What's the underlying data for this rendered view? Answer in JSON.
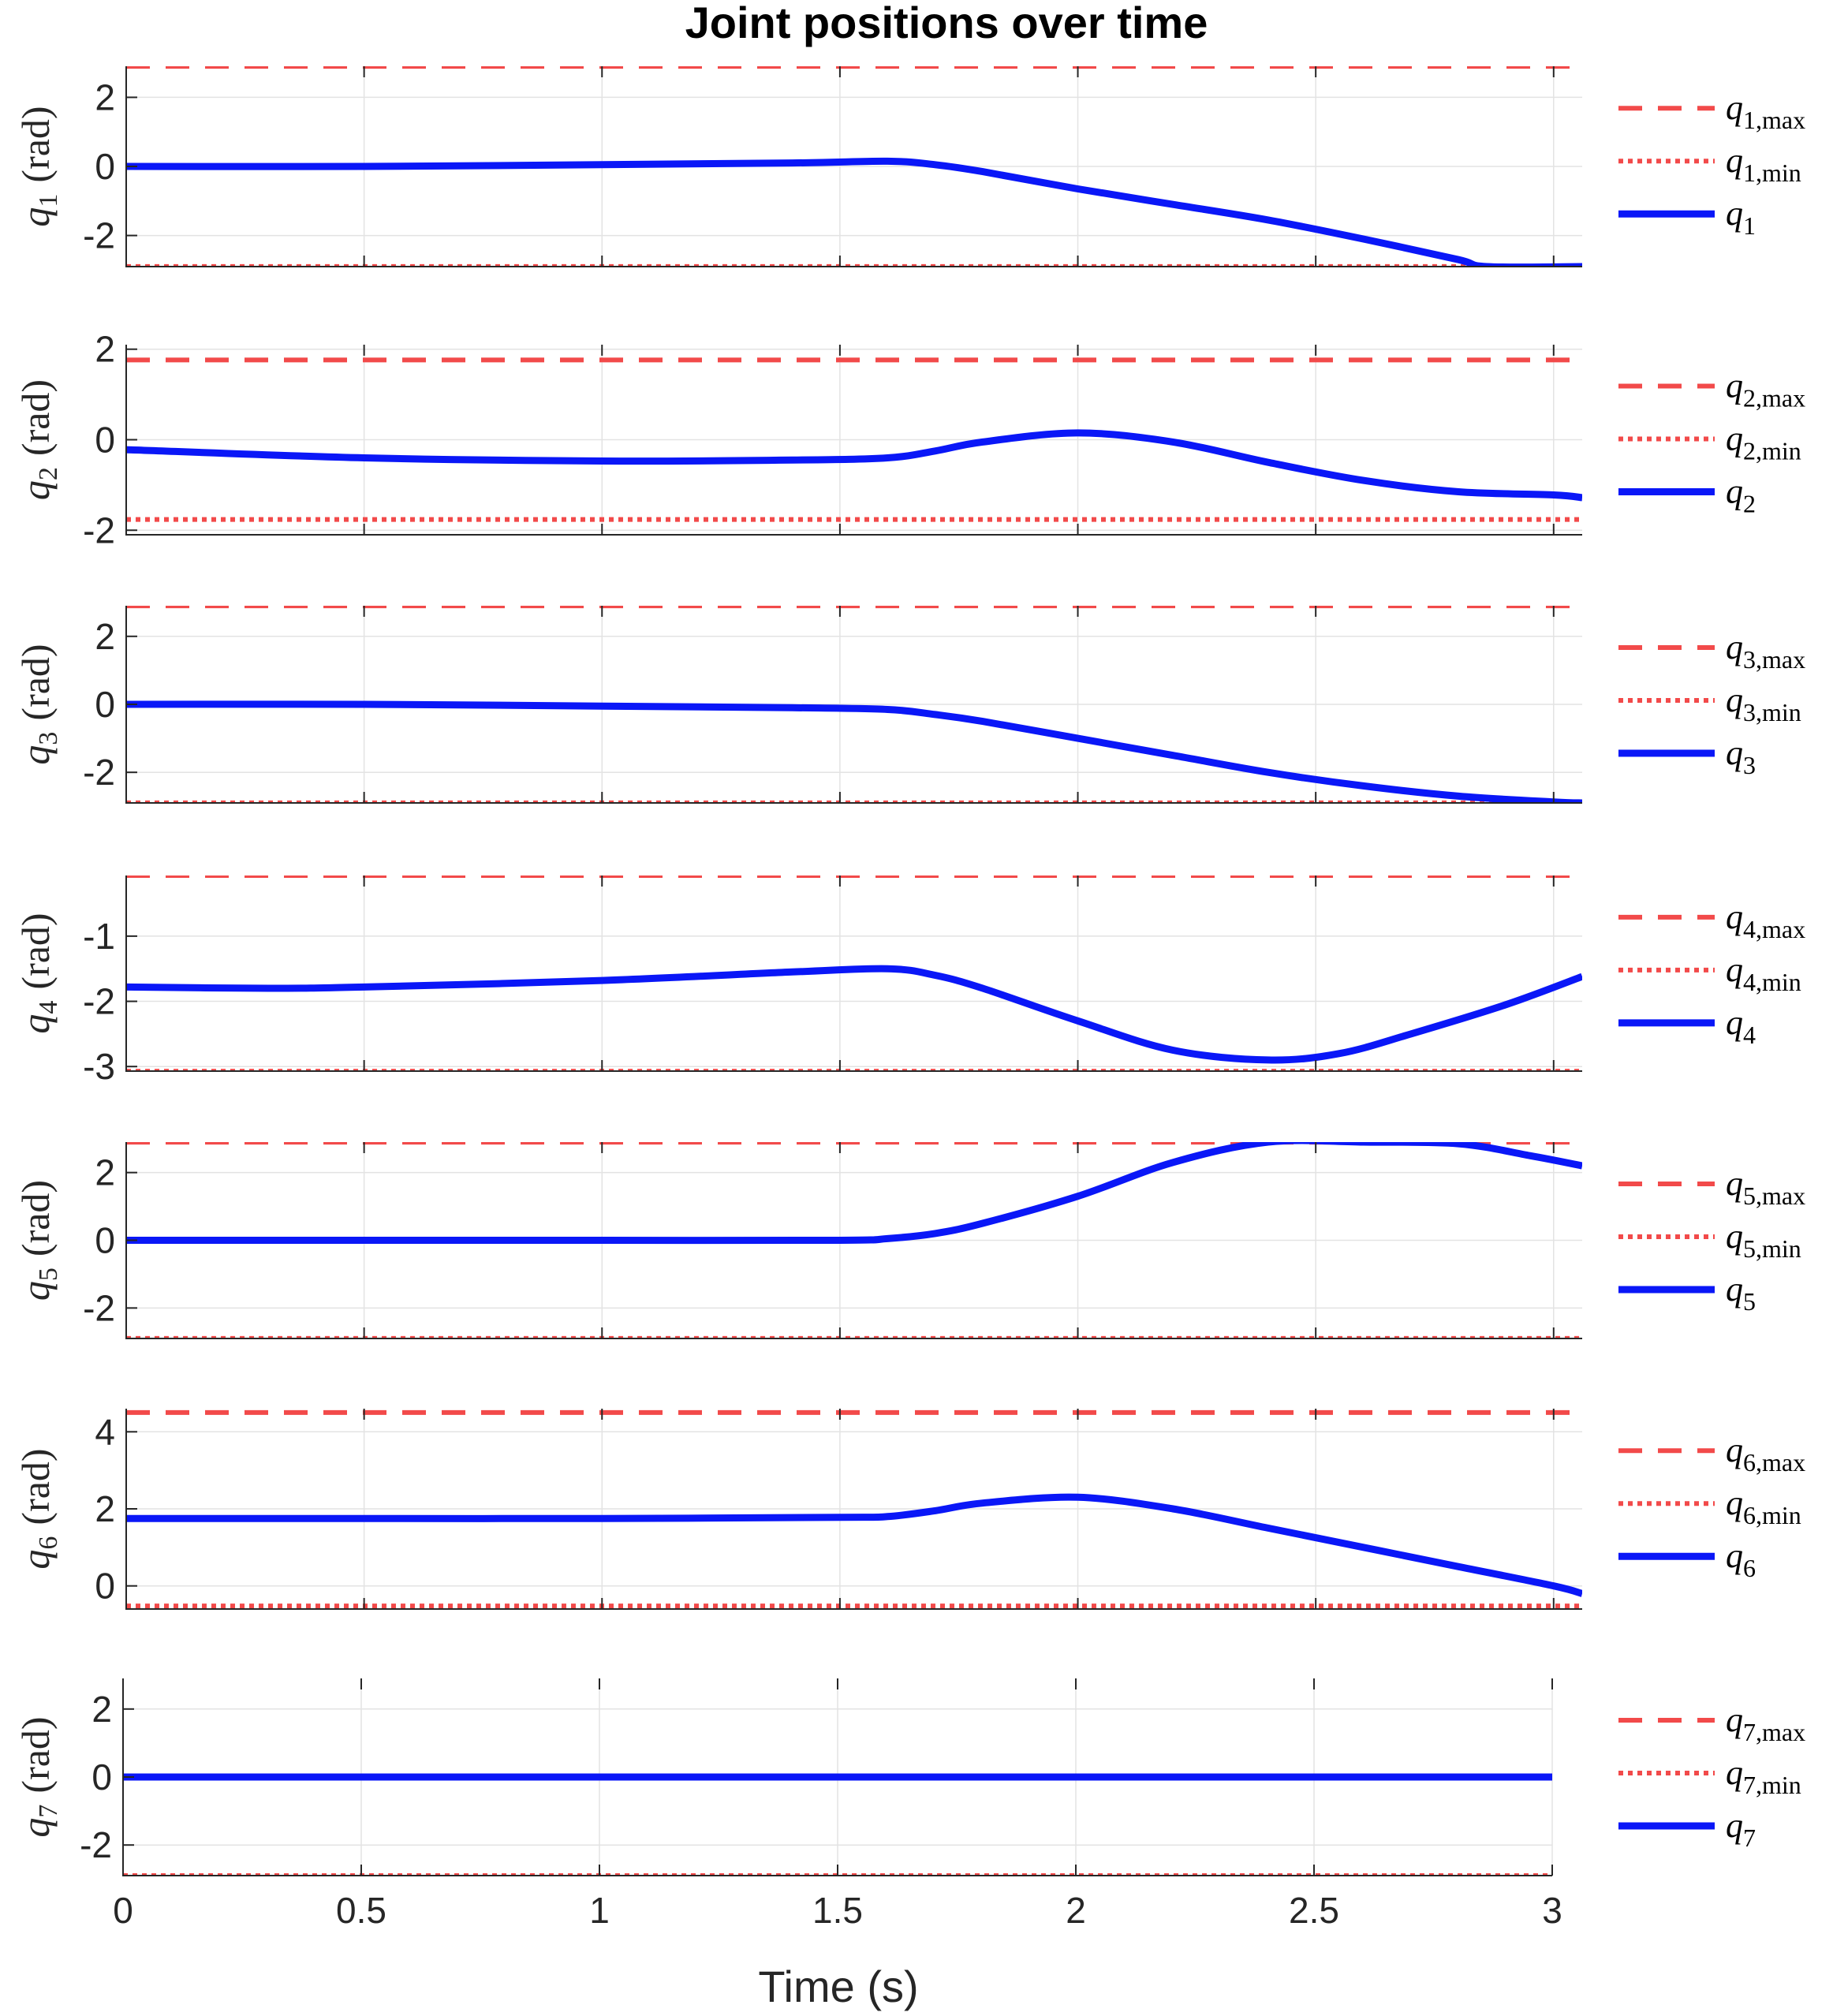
{
  "chart_data": {
    "type": "line",
    "title": "Joint positions over time",
    "xlabel": "Time (s)",
    "xticks": [
      0,
      0.5,
      1,
      1.5,
      2,
      2.5,
      3
    ],
    "xtick_labels": [
      "0",
      "0.5",
      "1",
      "1.5",
      "2",
      "2.5",
      "3"
    ],
    "grid": true,
    "legend_placement": "right of each subplot",
    "colors": {
      "limit": "#f24a4a",
      "trajectory": "#0a17f7"
    },
    "subplots": [
      {
        "joint": "1",
        "ylabel": {
          "var": "q",
          "sub": "1",
          "unit": "(rad)"
        },
        "xlim": [
          0,
          3.06
        ],
        "ylim": [
          -2.9,
          2.9
        ],
        "yticks": [
          -2,
          0,
          2
        ],
        "ytick_labels": [
          "-2",
          "0",
          "2"
        ],
        "series": [
          {
            "name": "q1,max",
            "kind": "max",
            "style": "dashed",
            "x": [
              0,
              3.06
            ],
            "y": [
              2.8973,
              2.8973
            ]
          },
          {
            "name": "q1,min",
            "kind": "min",
            "style": "dotted",
            "x": [
              0,
              3.06
            ],
            "y": [
              -2.8973,
              -2.8973
            ]
          },
          {
            "name": "q1",
            "kind": "traj",
            "style": "solid",
            "x": [
              0,
              0.5,
              1.0,
              1.4,
              1.6,
              1.7,
              1.8,
              2.0,
              2.2,
              2.4,
              2.6,
              2.8,
              2.86,
              3.06
            ],
            "y": [
              0.0,
              0.0,
              0.05,
              0.1,
              0.15,
              0.05,
              -0.15,
              -0.65,
              -1.1,
              -1.55,
              -2.1,
              -2.7,
              -2.9,
              -2.9
            ]
          }
        ],
        "legend": [
          {
            "kind": "max",
            "var": "q",
            "sub": "1,max"
          },
          {
            "kind": "min",
            "var": "q",
            "sub": "1,min"
          },
          {
            "kind": "traj",
            "var": "q",
            "sub": "1"
          }
        ]
      },
      {
        "joint": "2",
        "ylabel": {
          "var": "q",
          "sub": "2",
          "unit": "(rad)"
        },
        "xlim": [
          0,
          3.06
        ],
        "ylim": [
          -2.1,
          2.1
        ],
        "yticks": [
          -2,
          0,
          2
        ],
        "ytick_labels": [
          "-2",
          "0",
          "2"
        ],
        "series": [
          {
            "name": "q2,max",
            "kind": "max",
            "style": "dashed",
            "x": [
              0,
              3.06
            ],
            "y": [
              1.7628,
              1.7628
            ]
          },
          {
            "name": "q2,min",
            "kind": "min",
            "style": "dotted",
            "x": [
              0,
              3.06
            ],
            "y": [
              -1.7628,
              -1.7628
            ]
          },
          {
            "name": "q2",
            "kind": "traj",
            "style": "solid",
            "x": [
              0,
              0.5,
              1.0,
              1.4,
              1.6,
              1.7,
              1.8,
              2.0,
              2.2,
              2.4,
              2.6,
              2.8,
              3.0,
              3.06
            ],
            "y": [
              -0.22,
              -0.4,
              -0.47,
              -0.45,
              -0.4,
              -0.25,
              -0.05,
              0.15,
              -0.05,
              -0.5,
              -0.9,
              -1.15,
              -1.22,
              -1.28
            ]
          }
        ],
        "legend": [
          {
            "kind": "max",
            "var": "q",
            "sub": "2,max"
          },
          {
            "kind": "min",
            "var": "q",
            "sub": "2,min"
          },
          {
            "kind": "traj",
            "var": "q",
            "sub": "2"
          }
        ]
      },
      {
        "joint": "3",
        "ylabel": {
          "var": "q",
          "sub": "3",
          "unit": "(rad)"
        },
        "xlim": [
          0,
          3.06
        ],
        "ylim": [
          -2.9,
          2.9
        ],
        "yticks": [
          -2,
          0,
          2
        ],
        "ytick_labels": [
          "-2",
          "0",
          "2"
        ],
        "series": [
          {
            "name": "q3,max",
            "kind": "max",
            "style": "dashed",
            "x": [
              0,
              3.06
            ],
            "y": [
              2.8973,
              2.8973
            ]
          },
          {
            "name": "q3,min",
            "kind": "min",
            "style": "dotted",
            "x": [
              0,
              3.06
            ],
            "y": [
              -2.8973,
              -2.8973
            ]
          },
          {
            "name": "q3",
            "kind": "traj",
            "style": "solid",
            "x": [
              0,
              0.5,
              1.0,
              1.4,
              1.6,
              1.7,
              1.8,
              2.0,
              2.2,
              2.4,
              2.6,
              2.8,
              3.0,
              3.06
            ],
            "y": [
              0.0,
              0.0,
              -0.05,
              -0.1,
              -0.15,
              -0.3,
              -0.5,
              -1.0,
              -1.5,
              -2.0,
              -2.4,
              -2.7,
              -2.87,
              -2.9
            ]
          }
        ],
        "legend": [
          {
            "kind": "max",
            "var": "q",
            "sub": "3,max"
          },
          {
            "kind": "min",
            "var": "q",
            "sub": "3,min"
          },
          {
            "kind": "traj",
            "var": "q",
            "sub": "3"
          }
        ]
      },
      {
        "joint": "4",
        "ylabel": {
          "var": "q",
          "sub": "4",
          "unit": "(rad)"
        },
        "xlim": [
          0,
          3.06
        ],
        "ylim": [
          -3.07,
          -0.07
        ],
        "yticks": [
          -3,
          -2,
          -1
        ],
        "ytick_labels": [
          "-3",
          "-2",
          "-1"
        ],
        "series": [
          {
            "name": "q4,max",
            "kind": "max",
            "style": "dashed",
            "x": [
              0,
              3.06
            ],
            "y": [
              -0.0698,
              -0.0698
            ]
          },
          {
            "name": "q4,min",
            "kind": "min",
            "style": "dotted",
            "x": [
              0,
              3.06
            ],
            "y": [
              -3.0718,
              -3.0718
            ]
          },
          {
            "name": "q4",
            "kind": "traj",
            "style": "solid",
            "x": [
              0,
              0.3,
              0.5,
              1.0,
              1.4,
              1.6,
              1.7,
              1.8,
              2.0,
              2.2,
              2.4,
              2.55,
              2.7,
              2.9,
              3.06
            ],
            "y": [
              -1.78,
              -1.8,
              -1.78,
              -1.68,
              -1.55,
              -1.5,
              -1.6,
              -1.8,
              -2.3,
              -2.75,
              -2.9,
              -2.8,
              -2.5,
              -2.05,
              -1.62
            ]
          }
        ],
        "legend": [
          {
            "kind": "max",
            "var": "q",
            "sub": "4,max"
          },
          {
            "kind": "min",
            "var": "q",
            "sub": "4,min"
          },
          {
            "kind": "traj",
            "var": "q",
            "sub": "4"
          }
        ]
      },
      {
        "joint": "5",
        "ylabel": {
          "var": "q",
          "sub": "5",
          "unit": "(rad)"
        },
        "xlim": [
          0,
          3.06
        ],
        "ylim": [
          -2.9,
          2.9
        ],
        "yticks": [
          -2,
          0,
          2
        ],
        "ytick_labels": [
          "-2",
          "0",
          "2"
        ],
        "series": [
          {
            "name": "q5,max",
            "kind": "max",
            "style": "dashed",
            "x": [
              0,
              3.06
            ],
            "y": [
              2.8973,
              2.8973
            ]
          },
          {
            "name": "q5,min",
            "kind": "min",
            "style": "dotted",
            "x": [
              0,
              3.06
            ],
            "y": [
              -2.8973,
              -2.8973
            ]
          },
          {
            "name": "q5",
            "kind": "traj",
            "style": "solid",
            "x": [
              0,
              0.5,
              1.0,
              1.5,
              1.6,
              1.7,
              1.8,
              2.0,
              2.2,
              2.4,
              2.6,
              2.8,
              2.95,
              3.06
            ],
            "y": [
              0.0,
              0.0,
              0.0,
              0.0,
              0.05,
              0.2,
              0.5,
              1.3,
              2.3,
              2.9,
              2.9,
              2.85,
              2.5,
              2.2
            ]
          }
        ],
        "legend": [
          {
            "kind": "max",
            "var": "q",
            "sub": "5,max"
          },
          {
            "kind": "min",
            "var": "q",
            "sub": "5,min"
          },
          {
            "kind": "traj",
            "var": "q",
            "sub": "5"
          }
        ]
      },
      {
        "joint": "6",
        "ylabel": {
          "var": "q",
          "sub": "6",
          "unit": "(rad)"
        },
        "xlim": [
          0,
          3.06
        ],
        "ylim": [
          -0.6,
          4.6
        ],
        "yticks": [
          0,
          2,
          4
        ],
        "ytick_labels": [
          "0",
          "2",
          "4"
        ],
        "series": [
          {
            "name": "q6,max",
            "kind": "max",
            "style": "dashed",
            "x": [
              0,
              3.06
            ],
            "y": [
              4.5,
              4.5
            ]
          },
          {
            "name": "q6,min",
            "kind": "min",
            "style": "dotted",
            "x": [
              0,
              3.06
            ],
            "y": [
              -0.52,
              -0.52
            ]
          },
          {
            "name": "q6",
            "kind": "traj",
            "style": "solid",
            "x": [
              0,
              0.5,
              1.0,
              1.5,
              1.6,
              1.7,
              1.8,
              2.0,
              2.2,
              2.4,
              2.6,
              2.8,
              3.0,
              3.06
            ],
            "y": [
              1.75,
              1.75,
              1.75,
              1.78,
              1.8,
              1.95,
              2.15,
              2.3,
              2.0,
              1.5,
              1.0,
              0.5,
              0.0,
              -0.2
            ]
          }
        ],
        "legend": [
          {
            "kind": "max",
            "var": "q",
            "sub": "6,max"
          },
          {
            "kind": "min",
            "var": "q",
            "sub": "6,min"
          },
          {
            "kind": "traj",
            "var": "q",
            "sub": "6"
          }
        ]
      },
      {
        "joint": "7",
        "ylabel": {
          "var": "q",
          "sub": "7",
          "unit": "(rad)"
        },
        "xlim": [
          0,
          3.0
        ],
        "ylim": [
          -2.9,
          2.9
        ],
        "yticks": [
          -2,
          0,
          2
        ],
        "ytick_labels": [
          "-2",
          "0",
          "2"
        ],
        "series": [
          {
            "name": "q7,max",
            "kind": "max",
            "style": "dashed",
            "x": [
              0,
              3.0
            ],
            "y": [
              3.0,
              3.0
            ]
          },
          {
            "name": "q7,min",
            "kind": "min",
            "style": "dotted",
            "x": [
              0,
              3.0
            ],
            "y": [
              -2.9,
              -2.9
            ]
          },
          {
            "name": "q7",
            "kind": "traj",
            "style": "solid",
            "x": [
              0,
              3.0
            ],
            "y": [
              0.0,
              0.0
            ]
          }
        ],
        "legend": [
          {
            "kind": "max",
            "var": "q",
            "sub": "7,max"
          },
          {
            "kind": "min",
            "var": "q",
            "sub": "7,min"
          },
          {
            "kind": "traj",
            "var": "q",
            "sub": "7"
          }
        ]
      }
    ]
  }
}
